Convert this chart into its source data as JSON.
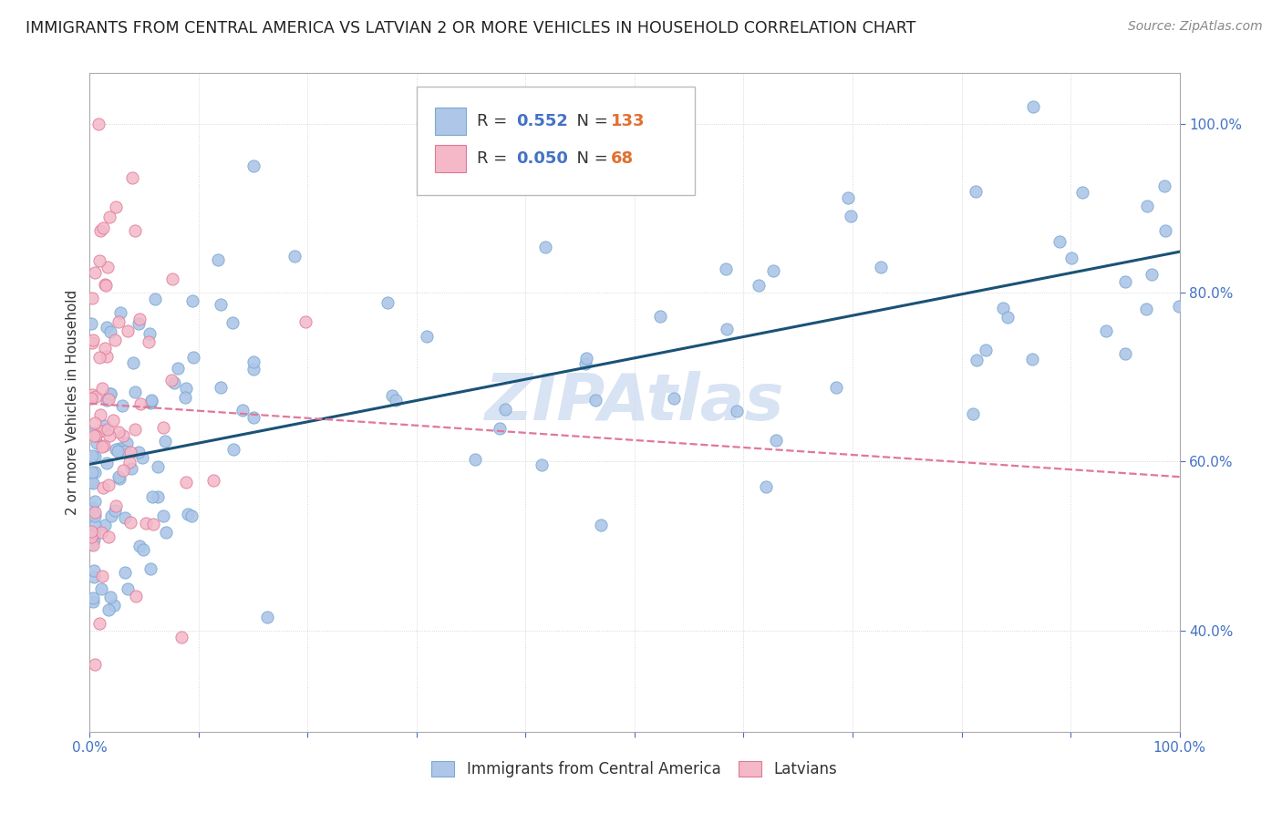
{
  "title": "IMMIGRANTS FROM CENTRAL AMERICA VS LATVIAN 2 OR MORE VEHICLES IN HOUSEHOLD CORRELATION CHART",
  "source": "Source: ZipAtlas.com",
  "ylabel": "2 or more Vehicles in Household",
  "xlim": [
    0.0,
    1.0
  ],
  "ylim": [
    0.28,
    1.06
  ],
  "blue_color": "#aec6e8",
  "blue_edge": "#7aaad0",
  "pink_color": "#f4b8c8",
  "pink_edge": "#e07898",
  "trend_blue": "#1a5276",
  "trend_pink": "#e07898",
  "R_blue": 0.552,
  "N_blue": 133,
  "R_pink": 0.05,
  "N_pink": 68,
  "watermark": "ZIPAtlas",
  "R_color": "#4472c4",
  "N_color": "#e07030",
  "legend_label_blue": "Immigrants from Central America",
  "legend_label_pink": "Latvians"
}
